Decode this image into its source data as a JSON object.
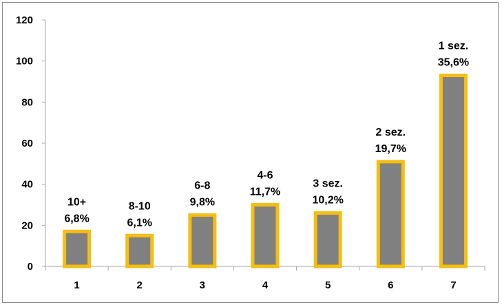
{
  "chart_data": {
    "type": "bar",
    "categories": [
      "1",
      "2",
      "3",
      "4",
      "5",
      "6",
      "7"
    ],
    "values": [
      17,
      15,
      25,
      30,
      26,
      51,
      93
    ],
    "data_labels": [
      [
        "10+",
        "6,8%"
      ],
      [
        "8-10",
        "6,1%"
      ],
      [
        "6-8",
        "9,8%"
      ],
      [
        "4-6",
        "11,7%"
      ],
      [
        "3 sez.",
        "10,2%"
      ],
      [
        "2 sez.",
        "19,7%"
      ],
      [
        "1 sez.",
        "35,6%"
      ]
    ],
    "title": "",
    "xlabel": "",
    "ylabel": "",
    "ylim": [
      0,
      120
    ],
    "yticks": [
      0,
      20,
      40,
      60,
      80,
      100,
      120
    ],
    "grid": false,
    "legend": "none",
    "colors": {
      "bar_fill": "#808080",
      "bar_border": "#f5be10",
      "axis": "#a6a6a6"
    }
  }
}
